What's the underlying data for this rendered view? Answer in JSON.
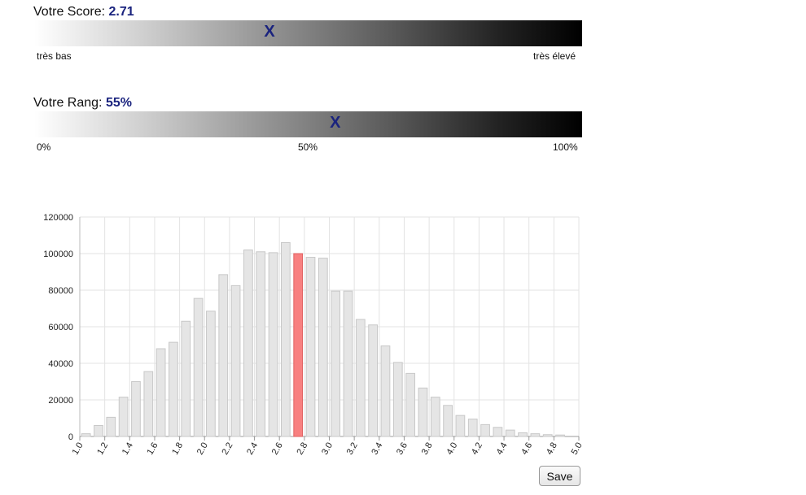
{
  "score": {
    "label": "Votre Score:",
    "value": "2.71",
    "marker": "X",
    "marker_position_fraction": 0.43,
    "min_label": "très bas",
    "max_label": "très élevé"
  },
  "rank": {
    "label": "Votre Rang:",
    "value": "55%",
    "marker": "X",
    "marker_position_fraction": 0.55,
    "ticks": [
      "0%",
      "50%",
      "100%"
    ]
  },
  "save_button": {
    "label": "Save"
  },
  "colors": {
    "bar_fill": "#e5e5e5",
    "bar_stroke": "#c8c8c8",
    "highlight_fill": "#f88080",
    "highlight_stroke": "#e06060",
    "score_value": "#1a237e",
    "grid": "#e3e3e3"
  },
  "chart_data": {
    "type": "bar",
    "title": "",
    "xlabel": "",
    "ylabel": "",
    "ylim": [
      0,
      120000
    ],
    "yticks": [
      0,
      20000,
      40000,
      60000,
      80000,
      100000,
      120000
    ],
    "categories": [
      "1.0",
      "1.1",
      "1.2",
      "1.3",
      "1.4",
      "1.5",
      "1.6",
      "1.7",
      "1.8",
      "1.9",
      "2.0",
      "2.1",
      "2.2",
      "2.3",
      "2.4",
      "2.5",
      "2.6",
      "2.7",
      "2.8",
      "2.9",
      "3.0",
      "3.1",
      "3.2",
      "3.3",
      "3.4",
      "3.5",
      "3.6",
      "3.7",
      "3.8",
      "3.9",
      "4.0",
      "4.1",
      "4.2",
      "4.3",
      "4.4",
      "4.5",
      "4.6",
      "4.7",
      "4.8",
      "4.9"
    ],
    "x_tick_labels": [
      "1.0",
      "1.2",
      "1.4",
      "1.6",
      "1.8",
      "2.0",
      "2.2",
      "2.4",
      "2.6",
      "2.8",
      "3.0",
      "3.2",
      "3.4",
      "3.6",
      "3.8",
      "4.0",
      "4.2",
      "4.4",
      "4.6",
      "4.8",
      "5.0"
    ],
    "values": [
      1500,
      6000,
      10500,
      21500,
      30000,
      35500,
      48000,
      51500,
      63000,
      75500,
      68500,
      88500,
      82500,
      102000,
      101000,
      100500,
      106000,
      100000,
      98000,
      97500,
      79500,
      79500,
      64000,
      61000,
      49500,
      40500,
      34500,
      26500,
      21500,
      17000,
      11500,
      9500,
      6500,
      5000,
      3500,
      2000,
      1500,
      1000,
      800,
      0
    ],
    "highlight_index": 17,
    "grid": true
  }
}
